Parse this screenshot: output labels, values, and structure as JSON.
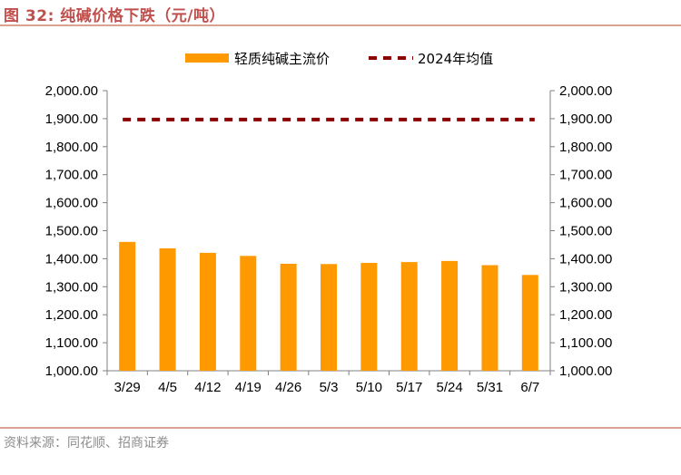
{
  "header": {
    "title": "图 32:  纯碱价格下跌（元/吨）"
  },
  "footer": {
    "source": "资料来源：同花顺、招商证券"
  },
  "chart_data": {
    "type": "bar",
    "title": "",
    "categories": [
      "3/29",
      "4/5",
      "4/12",
      "4/19",
      "4/26",
      "5/3",
      "5/10",
      "5/17",
      "5/24",
      "5/31",
      "6/7"
    ],
    "series": [
      {
        "name": "轻质纯碱主流价",
        "type": "bar",
        "color": "#ff9900",
        "values": [
          1460,
          1437,
          1421,
          1410,
          1382,
          1381,
          1385,
          1388,
          1392,
          1377,
          1342
        ]
      },
      {
        "name": "2024年均值",
        "type": "line",
        "style": "dashed",
        "color": "#8b0000",
        "values": [
          1897,
          1897,
          1897,
          1897,
          1897,
          1897,
          1897,
          1897,
          1897,
          1897,
          1897
        ]
      }
    ],
    "ylim": [
      1000,
      2000
    ],
    "y_ticks": [
      "1,000.00",
      "1,100.00",
      "1,200.00",
      "1,300.00",
      "1,400.00",
      "1,500.00",
      "1,600.00",
      "1,700.00",
      "1,800.00",
      "1,900.00",
      "2,000.00"
    ],
    "y2_ticks": [
      "1,000.00",
      "1,100.00",
      "1,200.00",
      "1,300.00",
      "1,400.00",
      "1,500.00",
      "1,600.00",
      "1,700.00",
      "1,800.00",
      "1,900.00",
      "2,000.00"
    ],
    "xlabel": "",
    "ylabel": "",
    "grid": false,
    "legend": "top-center"
  }
}
